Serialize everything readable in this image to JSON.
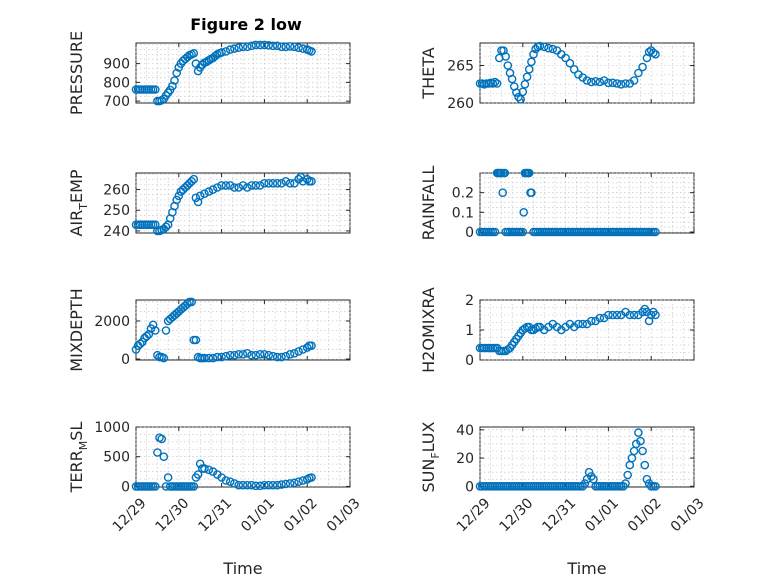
{
  "figure": {
    "title": "Figure 2 low",
    "marker_color": "#0072BD"
  },
  "chart_data": [
    {
      "type": "scatter",
      "ylabel": "PRESSURE",
      "ylabel_sub": "",
      "xlabel": "",
      "ylim": [
        690,
        1010
      ],
      "yticks": [
        700,
        800,
        900
      ],
      "xticks": [
        "12/29",
        "12/30",
        "12/31",
        "01/01",
        "01/02",
        "01/03"
      ],
      "show_xticklabels": false,
      "grid": true,
      "xlim": [
        0,
        5
      ],
      "x": [
        0.0,
        0.05,
        0.1,
        0.15,
        0.2,
        0.25,
        0.3,
        0.35,
        0.4,
        0.45,
        0.5,
        0.55,
        0.6,
        0.65,
        0.7,
        0.75,
        0.8,
        0.85,
        0.9,
        0.95,
        1.0,
        1.05,
        1.1,
        1.15,
        1.2,
        1.25,
        1.3,
        1.35,
        1.4,
        1.45,
        1.5,
        1.55,
        1.6,
        1.65,
        1.7,
        1.75,
        1.8,
        1.85,
        1.9,
        1.95,
        2.0,
        2.1,
        2.2,
        2.3,
        2.4,
        2.5,
        2.6,
        2.7,
        2.8,
        2.9,
        3.0,
        3.1,
        3.2,
        3.3,
        3.4,
        3.5,
        3.6,
        3.7,
        3.8,
        3.9,
        4.0,
        4.05,
        4.1
      ],
      "y": [
        762,
        762,
        762,
        762,
        762,
        762,
        762,
        762,
        762,
        762,
        700,
        700,
        705,
        712,
        730,
        745,
        760,
        780,
        810,
        850,
        880,
        900,
        915,
        925,
        935,
        945,
        950,
        955,
        900,
        860,
        880,
        895,
        905,
        910,
        918,
        925,
        930,
        940,
        950,
        955,
        960,
        965,
        975,
        980,
        985,
        990,
        990,
        995,
        1000,
        1000,
        1000,
        998,
        995,
        995,
        990,
        990,
        992,
        990,
        985,
        980,
        975,
        970,
        965
      ]
    },
    {
      "type": "scatter",
      "ylabel": "THETA",
      "ylabel_sub": "",
      "xlabel": "",
      "ylim": [
        260,
        268
      ],
      "yticks": [
        260,
        265
      ],
      "xticks": [
        "12/29",
        "12/30",
        "12/31",
        "01/01",
        "01/02",
        "01/03"
      ],
      "show_xticklabels": false,
      "grid": true,
      "xlim": [
        0,
        5
      ],
      "x": [
        0.0,
        0.05,
        0.1,
        0.15,
        0.2,
        0.25,
        0.3,
        0.35,
        0.4,
        0.45,
        0.5,
        0.55,
        0.6,
        0.65,
        0.7,
        0.75,
        0.8,
        0.85,
        0.9,
        0.95,
        1.0,
        1.05,
        1.1,
        1.15,
        1.2,
        1.25,
        1.3,
        1.35,
        1.4,
        1.5,
        1.6,
        1.7,
        1.8,
        1.9,
        2.0,
        2.1,
        2.2,
        2.3,
        2.4,
        2.5,
        2.6,
        2.7,
        2.8,
        2.9,
        3.0,
        3.1,
        3.2,
        3.3,
        3.4,
        3.5,
        3.6,
        3.7,
        3.8,
        3.9,
        3.95,
        4.0,
        4.05,
        4.1
      ],
      "y": [
        262.6,
        262.6,
        262.5,
        262.6,
        262.6,
        262.7,
        262.6,
        262.8,
        262.6,
        266.0,
        267.0,
        267.0,
        266.2,
        265.0,
        264.0,
        263.2,
        262.2,
        261.4,
        260.8,
        260.5,
        261.5,
        262.5,
        263.5,
        264.5,
        265.5,
        266.5,
        267.2,
        267.5,
        267.6,
        267.5,
        267.3,
        267.2,
        267.0,
        266.5,
        266.0,
        265.3,
        264.5,
        263.8,
        263.4,
        263.0,
        262.8,
        262.9,
        262.8,
        263.0,
        262.7,
        262.7,
        262.6,
        262.5,
        262.6,
        262.6,
        263.0,
        264.0,
        264.8,
        266.0,
        266.8,
        267.0,
        266.7,
        266.5
      ]
    },
    {
      "type": "scatter",
      "ylabel": "AIR",
      "ylabel_sub": "T",
      "ylabel_rest": "EMP",
      "xlabel": "",
      "ylim": [
        239,
        268
      ],
      "yticks": [
        240,
        250,
        260
      ],
      "xticks": [
        "12/29",
        "12/30",
        "12/31",
        "01/01",
        "01/02",
        "01/03"
      ],
      "show_xticklabels": false,
      "grid": true,
      "xlim": [
        0,
        5
      ],
      "x": [
        0.0,
        0.05,
        0.1,
        0.15,
        0.2,
        0.25,
        0.3,
        0.35,
        0.4,
        0.45,
        0.5,
        0.55,
        0.6,
        0.65,
        0.7,
        0.75,
        0.8,
        0.85,
        0.9,
        0.95,
        1.0,
        1.05,
        1.1,
        1.15,
        1.2,
        1.25,
        1.3,
        1.35,
        1.4,
        1.45,
        1.5,
        1.6,
        1.7,
        1.8,
        1.9,
        2.0,
        2.1,
        2.2,
        2.3,
        2.4,
        2.5,
        2.6,
        2.7,
        2.8,
        2.9,
        3.0,
        3.1,
        3.2,
        3.3,
        3.4,
        3.5,
        3.6,
        3.7,
        3.8,
        3.85,
        3.9,
        4.0,
        4.05,
        4.1
      ],
      "y": [
        243,
        243,
        243,
        243,
        243,
        243,
        243,
        243,
        243,
        243,
        240,
        240,
        240.5,
        241,
        242,
        243,
        246,
        249,
        252,
        255,
        257,
        259,
        260,
        261,
        262,
        263,
        264,
        265,
        256,
        254,
        257,
        258,
        259,
        260,
        261,
        262,
        262,
        262,
        261,
        261,
        262,
        261,
        262,
        262,
        262,
        263,
        263,
        263,
        263,
        263,
        264,
        263,
        263,
        265,
        266,
        264,
        265,
        264,
        264
      ]
    },
    {
      "type": "scatter",
      "ylabel": "RAINFALL",
      "ylabel_sub": "",
      "xlabel": "",
      "ylim": [
        -0.005,
        0.3
      ],
      "yticks": [
        0,
        0.1,
        0.2
      ],
      "yticklabels": [
        "0",
        "0.1",
        "0.2"
      ],
      "xticks": [
        "12/29",
        "12/30",
        "12/31",
        "01/01",
        "01/02",
        "01/03"
      ],
      "show_xticklabels": false,
      "grid": true,
      "xlim": [
        0,
        5
      ],
      "x": [
        0.0,
        0.05,
        0.1,
        0.15,
        0.2,
        0.25,
        0.3,
        0.35,
        0.4,
        0.42,
        0.45,
        0.48,
        0.5,
        0.53,
        0.55,
        0.58,
        0.6,
        0.65,
        0.7,
        0.75,
        0.8,
        0.85,
        0.9,
        0.95,
        1.0,
        1.02,
        1.05,
        1.08,
        1.1,
        1.12,
        1.15,
        1.18,
        1.2,
        1.25,
        1.3,
        1.35,
        1.4,
        1.45,
        1.5,
        1.55,
        1.6,
        1.65,
        1.7,
        1.75,
        1.8,
        1.85,
        1.9,
        1.95,
        2.0,
        2.05,
        2.1,
        2.15,
        2.2,
        2.25,
        2.3,
        2.35,
        2.4,
        2.45,
        2.5,
        2.55,
        2.6,
        2.65,
        2.7,
        2.75,
        2.8,
        2.85,
        2.9,
        2.95,
        3.0,
        3.05,
        3.1,
        3.15,
        3.2,
        3.25,
        3.3,
        3.35,
        3.4,
        3.45,
        3.5,
        3.55,
        3.6,
        3.65,
        3.7,
        3.75,
        3.8,
        3.85,
        3.9,
        3.95,
        4.0,
        4.05,
        4.1
      ],
      "y": [
        0,
        0,
        0,
        0,
        0,
        0,
        0,
        0,
        0.3,
        0.3,
        0.3,
        0.3,
        0.3,
        0.2,
        0.3,
        0.3,
        0,
        0,
        0,
        0,
        0,
        0,
        0,
        0,
        0,
        0.1,
        0.3,
        0.3,
        0.3,
        0.3,
        0.3,
        0.2,
        0.2,
        0,
        0,
        0,
        0,
        0,
        0,
        0,
        0,
        0,
        0,
        0,
        0,
        0,
        0,
        0,
        0,
        0,
        0,
        0,
        0,
        0,
        0,
        0,
        0,
        0,
        0,
        0,
        0,
        0,
        0,
        0,
        0,
        0,
        0,
        0,
        0,
        0,
        0,
        0,
        0,
        0,
        0,
        0,
        0,
        0,
        0,
        0,
        0,
        0,
        0,
        0,
        0,
        0,
        0,
        0,
        0,
        0,
        0
      ]
    },
    {
      "type": "scatter",
      "ylabel": "MIXDEPTH",
      "ylabel_sub": "",
      "xlabel": "",
      "ylim": [
        -50,
        3100
      ],
      "yticks": [
        0,
        2000
      ],
      "xticks": [
        "12/29",
        "12/30",
        "12/31",
        "01/01",
        "01/02",
        "01/03"
      ],
      "show_xticklabels": false,
      "grid": true,
      "xlim": [
        0,
        5
      ],
      "x": [
        0.0,
        0.05,
        0.1,
        0.15,
        0.2,
        0.25,
        0.3,
        0.35,
        0.4,
        0.45,
        0.5,
        0.55,
        0.6,
        0.65,
        0.7,
        0.75,
        0.8,
        0.85,
        0.9,
        0.95,
        1.0,
        1.05,
        1.1,
        1.15,
        1.2,
        1.25,
        1.3,
        1.35,
        1.4,
        1.45,
        1.5,
        1.55,
        1.6,
        1.7,
        1.8,
        1.9,
        2.0,
        2.1,
        2.2,
        2.3,
        2.4,
        2.5,
        2.6,
        2.7,
        2.8,
        2.9,
        3.0,
        3.1,
        3.2,
        3.3,
        3.4,
        3.5,
        3.6,
        3.7,
        3.8,
        3.9,
        4.0,
        4.05,
        4.1
      ],
      "y": [
        500,
        700,
        800,
        900,
        1100,
        1200,
        1300,
        1600,
        1800,
        1500,
        200,
        100,
        100,
        50,
        1500,
        2000,
        2100,
        2200,
        2300,
        2400,
        2500,
        2600,
        2700,
        2800,
        2900,
        3000,
        3000,
        1000,
        1000,
        100,
        50,
        50,
        50,
        50,
        50,
        100,
        100,
        150,
        200,
        200,
        250,
        250,
        300,
        200,
        200,
        250,
        250,
        200,
        150,
        100,
        100,
        150,
        250,
        300,
        400,
        500,
        600,
        700,
        700
      ]
    },
    {
      "type": "scatter",
      "ylabel": "H2OMIXRA",
      "ylabel_sub": "",
      "xlabel": "",
      "ylim": [
        0,
        2
      ],
      "yticks": [
        0,
        1,
        2
      ],
      "xticks": [
        "12/29",
        "12/30",
        "12/31",
        "01/01",
        "01/02",
        "01/03"
      ],
      "show_xticklabels": false,
      "grid": true,
      "xlim": [
        0,
        5
      ],
      "x": [
        0.0,
        0.05,
        0.1,
        0.15,
        0.2,
        0.25,
        0.3,
        0.35,
        0.4,
        0.45,
        0.5,
        0.55,
        0.6,
        0.65,
        0.7,
        0.75,
        0.8,
        0.85,
        0.9,
        0.95,
        1.0,
        1.05,
        1.1,
        1.15,
        1.2,
        1.25,
        1.3,
        1.35,
        1.4,
        1.5,
        1.6,
        1.7,
        1.8,
        1.9,
        2.0,
        2.1,
        2.2,
        2.3,
        2.4,
        2.5,
        2.6,
        2.7,
        2.8,
        2.9,
        3.0,
        3.1,
        3.2,
        3.3,
        3.4,
        3.5,
        3.6,
        3.7,
        3.8,
        3.85,
        3.9,
        3.95,
        4.0,
        4.05,
        4.1
      ],
      "y": [
        0.4,
        0.4,
        0.4,
        0.4,
        0.4,
        0.4,
        0.4,
        0.4,
        0.4,
        0.3,
        0.3,
        0.3,
        0.3,
        0.35,
        0.4,
        0.5,
        0.6,
        0.7,
        0.8,
        0.9,
        1.0,
        1.05,
        1.1,
        1.1,
        1.0,
        1.0,
        1.05,
        1.1,
        1.1,
        1.0,
        1.1,
        1.2,
        1.1,
        1.0,
        1.1,
        1.2,
        1.1,
        1.2,
        1.2,
        1.2,
        1.3,
        1.3,
        1.4,
        1.4,
        1.5,
        1.5,
        1.5,
        1.5,
        1.6,
        1.5,
        1.5,
        1.5,
        1.6,
        1.7,
        1.6,
        1.3,
        1.5,
        1.6,
        1.5
      ]
    },
    {
      "type": "scatter",
      "ylabel": "TERR",
      "ylabel_sub": "M",
      "ylabel_rest": "SL",
      "xlabel": "Time",
      "ylim": [
        -10,
        1000
      ],
      "yticks": [
        0,
        500,
        1000
      ],
      "xticks": [
        "12/29",
        "12/30",
        "12/31",
        "01/01",
        "01/02",
        "01/03"
      ],
      "show_xticklabels": true,
      "grid": true,
      "xlim": [
        0,
        5
      ],
      "x": [
        0.0,
        0.05,
        0.1,
        0.15,
        0.2,
        0.25,
        0.3,
        0.35,
        0.4,
        0.45,
        0.5,
        0.55,
        0.6,
        0.65,
        0.7,
        0.75,
        0.8,
        0.85,
        0.9,
        0.95,
        1.0,
        1.05,
        1.1,
        1.15,
        1.2,
        1.25,
        1.3,
        1.35,
        1.4,
        1.45,
        1.5,
        1.55,
        1.6,
        1.7,
        1.8,
        1.9,
        2.0,
        2.1,
        2.2,
        2.3,
        2.4,
        2.5,
        2.6,
        2.7,
        2.8,
        2.9,
        3.0,
        3.1,
        3.2,
        3.3,
        3.4,
        3.5,
        3.6,
        3.7,
        3.8,
        3.9,
        4.0,
        4.05,
        4.1
      ],
      "y": [
        0,
        0,
        0,
        0,
        0,
        0,
        0,
        0,
        0,
        0,
        570,
        820,
        800,
        500,
        0,
        150,
        0,
        0,
        0,
        0,
        0,
        0,
        0,
        0,
        0,
        0,
        0,
        0,
        150,
        200,
        380,
        300,
        300,
        280,
        250,
        200,
        150,
        100,
        80,
        50,
        20,
        20,
        20,
        20,
        10,
        10,
        20,
        20,
        20,
        20,
        30,
        40,
        50,
        60,
        80,
        100,
        120,
        140,
        150
      ]
    },
    {
      "type": "scatter",
      "ylabel": "SUN",
      "ylabel_sub": "F",
      "ylabel_rest": "LUX",
      "xlabel": "Time",
      "ylim": [
        -0.5,
        42
      ],
      "yticks": [
        0,
        20,
        40
      ],
      "xticks": [
        "12/29",
        "12/30",
        "12/31",
        "01/01",
        "01/02",
        "01/03"
      ],
      "show_xticklabels": true,
      "grid": true,
      "xlim": [
        0,
        5
      ],
      "x": [
        0.0,
        0.05,
        0.1,
        0.15,
        0.2,
        0.25,
        0.3,
        0.35,
        0.4,
        0.45,
        0.5,
        0.55,
        0.6,
        0.65,
        0.7,
        0.75,
        0.8,
        0.85,
        0.9,
        0.95,
        1.0,
        1.05,
        1.1,
        1.15,
        1.2,
        1.25,
        1.3,
        1.35,
        1.4,
        1.45,
        1.5,
        1.55,
        1.6,
        1.65,
        1.7,
        1.75,
        1.8,
        1.85,
        1.9,
        1.95,
        2.0,
        2.05,
        2.1,
        2.15,
        2.2,
        2.25,
        2.3,
        2.35,
        2.4,
        2.45,
        2.5,
        2.55,
        2.6,
        2.65,
        2.7,
        2.75,
        2.8,
        2.85,
        2.9,
        2.95,
        3.0,
        3.05,
        3.1,
        3.15,
        3.2,
        3.25,
        3.3,
        3.35,
        3.4,
        3.45,
        3.5,
        3.55,
        3.6,
        3.65,
        3.7,
        3.75,
        3.8,
        3.85,
        3.9,
        3.95,
        4.0,
        4.05,
        4.1
      ],
      "y": [
        0,
        0,
        0,
        0,
        0,
        0,
        0,
        0,
        0,
        0,
        0,
        0,
        0,
        0,
        0,
        0,
        0,
        0,
        0,
        0,
        0,
        0,
        0,
        0,
        0,
        0,
        0,
        0,
        0,
        0,
        0,
        0,
        0,
        0,
        0,
        0,
        0,
        0,
        0,
        0,
        0,
        0,
        0,
        0,
        0,
        0,
        0,
        0,
        0,
        2,
        5,
        10,
        7,
        5,
        0,
        0,
        0,
        0,
        0,
        0,
        0,
        0,
        0,
        0,
        0,
        0,
        0,
        0,
        2,
        8,
        15,
        20,
        25,
        30,
        38,
        32,
        25,
        15,
        5,
        2,
        0,
        0,
        0
      ]
    }
  ]
}
